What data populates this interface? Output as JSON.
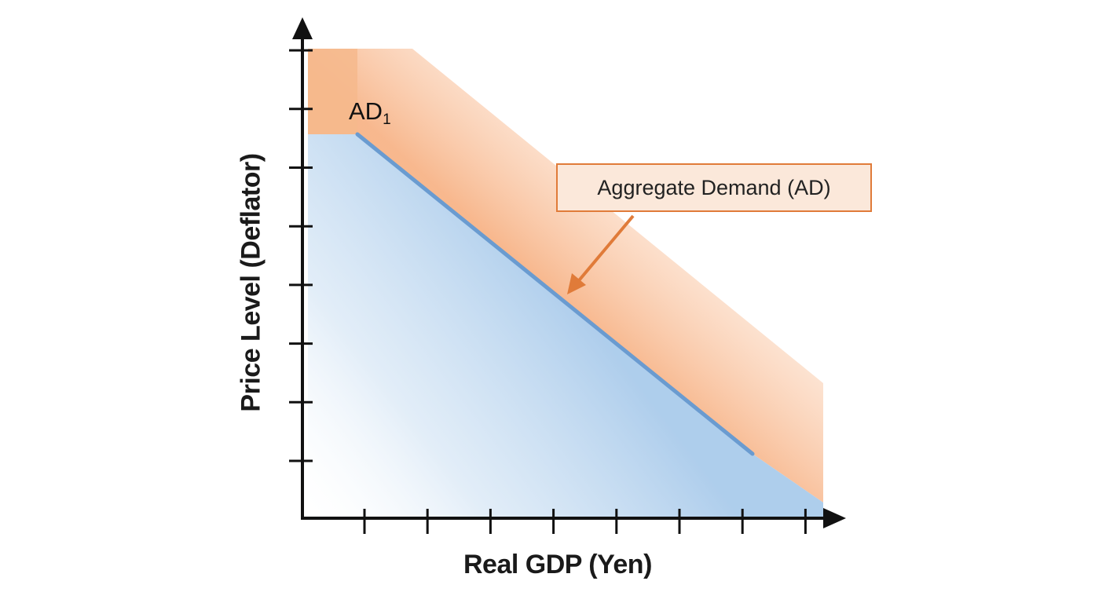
{
  "diagram": {
    "x_axis_title": "Real GDP (Yen)",
    "y_axis_title": "Price Level (Deflator)",
    "curve_label_main": "AD",
    "curve_label_sub": "1",
    "callout_text": "Aggregate Demand (AD)",
    "x_tick_count": 8,
    "y_tick_count": 8
  },
  "colors": {
    "axis": "#111111",
    "curve": "#6a9bd0",
    "blue_fill": "#b9d6ef",
    "orange_fill": "#f6b98c",
    "callout_border": "#e07b39",
    "arrow": "#e07b39"
  }
}
